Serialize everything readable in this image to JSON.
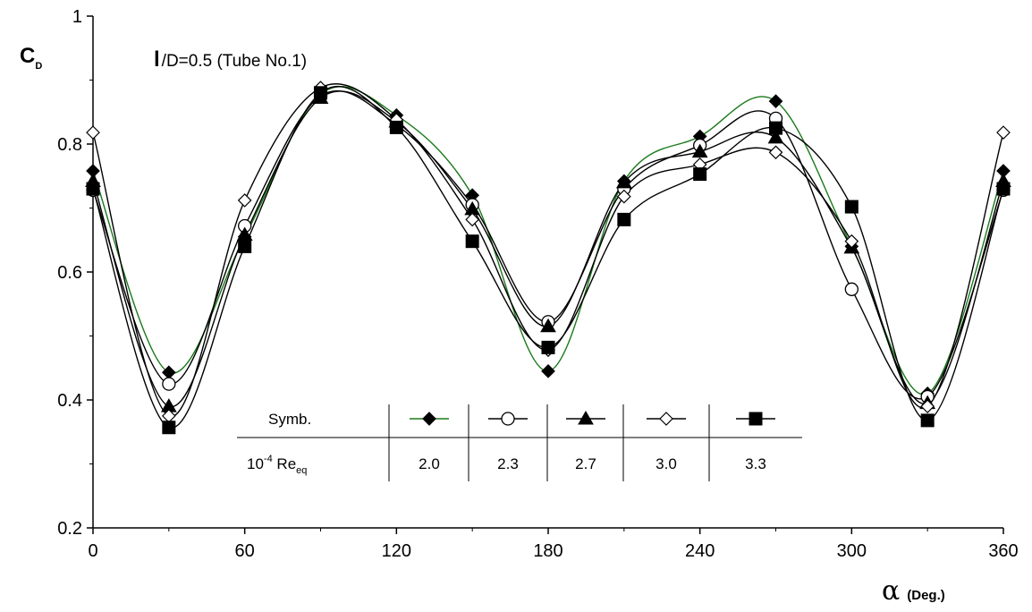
{
  "chart_data": {
    "type": "line",
    "ylabel": "C",
    "ylabel_sub": "D",
    "annotation": {
      "l": "l",
      "rest": "/D=0.5 (Tube No.1)"
    },
    "xlabel": {
      "symbol": "α",
      "unit": "(Deg.)"
    },
    "xlim": [
      0,
      360
    ],
    "ylim": [
      0.2,
      1.0
    ],
    "xticks": [
      "0",
      "60",
      "120",
      "180",
      "240",
      "300",
      "360"
    ],
    "yticks": [
      "0.2",
      "0.4",
      "0.6",
      "0.8",
      "1"
    ],
    "grid": false,
    "x": [
      0,
      30,
      60,
      90,
      120,
      150,
      180,
      210,
      240,
      270,
      300,
      330,
      360
    ],
    "series": [
      {
        "marker": "diamond-filled",
        "line_color": "#1a7a1a",
        "re": "2.0",
        "values": [
          0.758,
          0.443,
          0.655,
          0.878,
          0.845,
          0.72,
          0.445,
          0.742,
          0.812,
          0.867,
          0.64,
          0.41,
          0.758
        ]
      },
      {
        "marker": "circle-open",
        "line_color": "#000000",
        "re": "2.3",
        "values": [
          0.728,
          0.425,
          0.672,
          0.875,
          0.83,
          0.705,
          0.522,
          0.73,
          0.798,
          0.84,
          0.573,
          0.405,
          0.728
        ]
      },
      {
        "marker": "triangle-filled",
        "line_color": "#000000",
        "re": "2.7",
        "values": [
          0.742,
          0.39,
          0.658,
          0.872,
          0.835,
          0.698,
          0.515,
          0.74,
          0.788,
          0.81,
          0.638,
          0.395,
          0.742
        ]
      },
      {
        "marker": "diamond-open",
        "line_color": "#000000",
        "re": "3.0",
        "values": [
          0.818,
          0.375,
          0.712,
          0.888,
          0.838,
          0.682,
          0.478,
          0.718,
          0.768,
          0.787,
          0.648,
          0.39,
          0.818
        ]
      },
      {
        "marker": "square-filled",
        "line_color": "#000000",
        "re": "3.3",
        "values": [
          0.73,
          0.357,
          0.64,
          0.88,
          0.826,
          0.648,
          0.482,
          0.682,
          0.753,
          0.825,
          0.702,
          0.368,
          0.73
        ]
      }
    ],
    "legend": {
      "row1_label": "Symb.",
      "row2_label_prefix": "10",
      "row2_label_exp": "-4",
      "row2_label_main": " Re",
      "row2_label_sub": "eq"
    }
  }
}
